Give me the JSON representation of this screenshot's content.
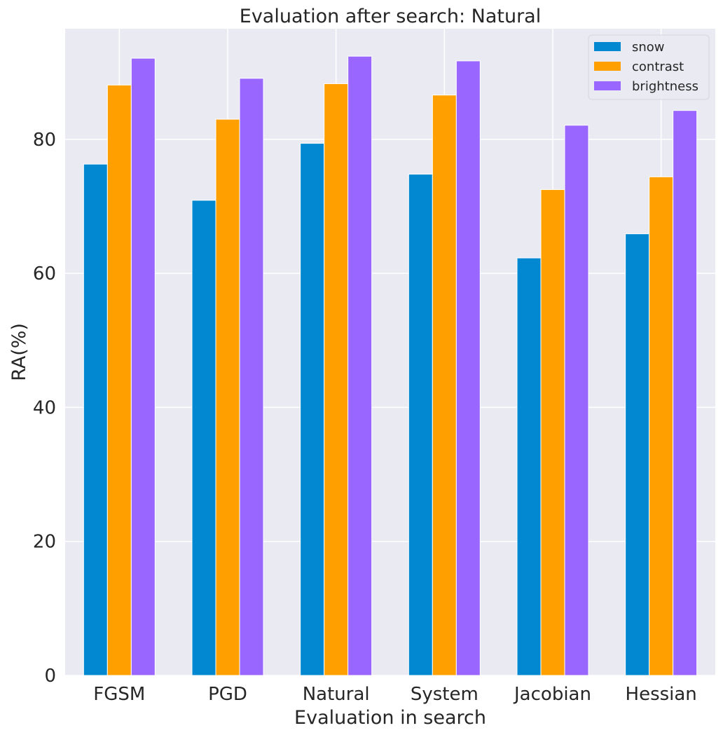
{
  "chart_data": {
    "type": "bar",
    "title": "Evaluation after search: Natural",
    "xlabel": "Evaluation in search",
    "ylabel": "RA(%)",
    "categories": [
      "FGSM",
      "PGD",
      "Natural",
      "System",
      "Jacobian",
      "Hessian"
    ],
    "series": [
      {
        "name": "snow",
        "color": "#0288d1",
        "values": [
          76.3,
          70.9,
          79.4,
          74.8,
          62.3,
          65.9
        ]
      },
      {
        "name": "contrast",
        "color": "#ffa000",
        "values": [
          88.1,
          83.0,
          88.3,
          86.6,
          72.5,
          74.4
        ]
      },
      {
        "name": "brightness",
        "color": "#9966ff",
        "values": [
          92.1,
          89.1,
          92.4,
          91.7,
          82.1,
          84.3
        ]
      }
    ],
    "ylim": [
      0,
      96.5
    ],
    "yticks": [
      0,
      20,
      40,
      60,
      80
    ],
    "grid": true,
    "legend_position": "top-right"
  }
}
